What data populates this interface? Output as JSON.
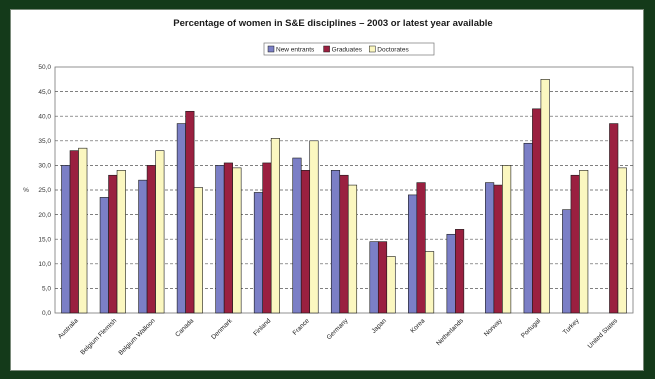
{
  "colors": {
    "background": "#143a1a",
    "panel": "#ffffff",
    "plot": "#ffffff",
    "grid": "#555555",
    "new_entrants": "#7b7fc6",
    "graduates": "#9a2040",
    "doctorates": "#fbf7c0"
  },
  "chart_data": {
    "type": "bar",
    "title": "Percentage of women in S&E disciplines – 2003 or latest year available",
    "ylabel": "%",
    "xlabel": "",
    "ylim": [
      0,
      50
    ],
    "yticks": [
      "0,0",
      "5,0",
      "10,0",
      "15,0",
      "20,0",
      "25,0",
      "30,0",
      "35,0",
      "40,0",
      "45,0",
      "50,0"
    ],
    "grid": "horizontal dashed",
    "legend_position": "top-right",
    "categories": [
      "Australia",
      "Belgium Flemish",
      "Belgium Walloon",
      "Canada",
      "Denmark",
      "Finland",
      "France",
      "Germany",
      "Japan",
      "Korea",
      "Netherlands",
      "Norway",
      "Portugal",
      "Turkey",
      "United States"
    ],
    "series": [
      {
        "name": "New entrants",
        "color_key": "new_entrants",
        "values": [
          30,
          23.5,
          27,
          38.5,
          30,
          24.5,
          31.5,
          29,
          14.5,
          24,
          16,
          26.5,
          34.5,
          21,
          null
        ]
      },
      {
        "name": "Graduates",
        "color_key": "graduates",
        "values": [
          33,
          28,
          30,
          41,
          30.5,
          30.5,
          29,
          28,
          14.5,
          26.5,
          17,
          26,
          41.5,
          28,
          38.5
        ]
      },
      {
        "name": "Doctorates",
        "color_key": "doctorates",
        "values": [
          33.5,
          29,
          33,
          25.5,
          29.5,
          35.5,
          35,
          26,
          11.5,
          12.5,
          null,
          30,
          47.5,
          29,
          29.5
        ]
      }
    ]
  }
}
